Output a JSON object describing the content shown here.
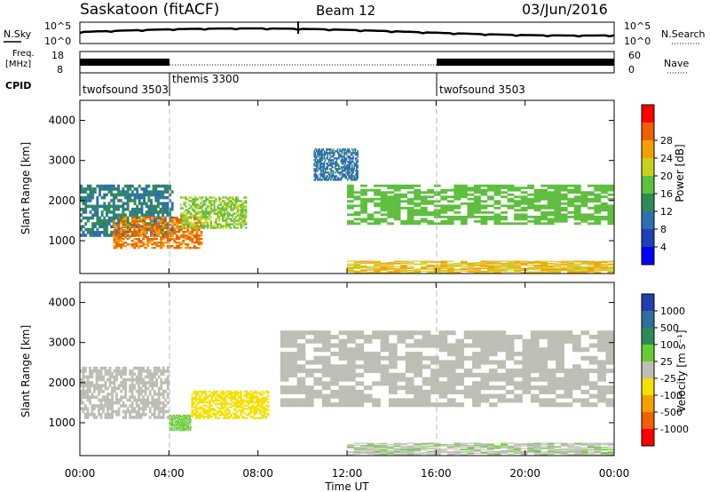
{
  "header": {
    "station": "Saskatoon (fitACF)",
    "beam": "Beam 12",
    "date": "03/Jun/2016"
  },
  "noise_panel": {
    "left_label": "N.Sky",
    "right_label": "N.Search",
    "left_ticks": [
      "10^5",
      "10^0"
    ],
    "right_ticks": [
      "10^5",
      "10^0"
    ]
  },
  "freq_panel": {
    "left_label_1": "Freq.",
    "left_label_2": "[MHz]",
    "right_label": "Nave",
    "left_ticks": [
      "18",
      "8"
    ],
    "right_ticks": [
      "60",
      "0"
    ]
  },
  "cpid_panel": {
    "label": "CPID",
    "modes": [
      {
        "name": "twofsound 3503",
        "start_hour": 0
      },
      {
        "name": "themis 3300",
        "start_hour": 4
      },
      {
        "name": "twofsound 3503",
        "start_hour": 16
      }
    ]
  },
  "power_panel": {
    "ylabel": "Slant Range [km]",
    "yticks": [
      "1000",
      "2000",
      "3000",
      "4000"
    ],
    "colorbar_label": "Power [dB]",
    "colorbar_ticks": [
      "4",
      "8",
      "12",
      "16",
      "20",
      "24",
      "28"
    ],
    "colorbar_colors": [
      "#0000ff",
      "#1f3fb8",
      "#2f6fb0",
      "#2e8b57",
      "#5fbf40",
      "#c8d020",
      "#f5a000",
      "#f06000",
      "#ff0000"
    ]
  },
  "velocity_panel": {
    "ylabel": "Slant Range [km]",
    "yticks": [
      "1000",
      "2000",
      "3000",
      "4000"
    ],
    "colorbar_label": "Velocity [m s⁻¹]",
    "colorbar_ticks": [
      "1000",
      "500",
      "100",
      "25",
      "-25",
      "-100",
      "-500",
      "-1000"
    ],
    "colorbar_colors": [
      "#1f3faf",
      "#2f6fa0",
      "#2e8b57",
      "#66cc33",
      "#bebeb4",
      "#f5e000",
      "#f5a000",
      "#f06000",
      "#ff0000"
    ]
  },
  "x_axis": {
    "label": "Time UT",
    "ticks": [
      "00:00",
      "04:00",
      "08:00",
      "12:00",
      "16:00",
      "20:00",
      "00:00"
    ]
  },
  "chart_data": {
    "type": "heatmap",
    "title": "Saskatoon (fitACF) Beam 12 03/Jun/2016",
    "xlabel": "Time UT",
    "xlim_hours": [
      0,
      24
    ],
    "ylim_km": [
      180,
      4500
    ],
    "panels": [
      {
        "name": "Power",
        "units": "dB",
        "range": [
          0,
          30
        ],
        "regions": [
          {
            "t0": 0,
            "t1": 4.2,
            "r0": 1100,
            "r1": 2400,
            "value": 9
          },
          {
            "t0": 1.5,
            "t1": 5.5,
            "r0": 800,
            "r1": 1600,
            "value": 24
          },
          {
            "t0": 4.5,
            "t1": 7.5,
            "r0": 1300,
            "r1": 2100,
            "value": 16
          },
          {
            "t0": 10.5,
            "t1": 12.5,
            "r0": 2500,
            "r1": 3300,
            "value": 8
          },
          {
            "t0": 12,
            "t1": 24,
            "r0": 1400,
            "r1": 2400,
            "value": 14
          },
          {
            "t0": 12,
            "t1": 24,
            "r0": 200,
            "r1": 500,
            "value": 20
          }
        ]
      },
      {
        "name": "Velocity",
        "units": "m/s",
        "range": [
          -1000,
          1000
        ],
        "regions": [
          {
            "t0": 0,
            "t1": 4,
            "r0": 1100,
            "r1": 2400,
            "value": 0
          },
          {
            "t0": 4,
            "t1": 5,
            "r0": 800,
            "r1": 1200,
            "value": 150
          },
          {
            "t0": 5,
            "t1": 8.5,
            "r0": 1100,
            "r1": 1800,
            "value": -300
          },
          {
            "t0": 9,
            "t1": 24,
            "r0": 1400,
            "r1": 3300,
            "value": 0
          },
          {
            "t0": 12,
            "t1": 24,
            "r0": 200,
            "r1": 500,
            "value": 40
          }
        ]
      }
    ]
  }
}
